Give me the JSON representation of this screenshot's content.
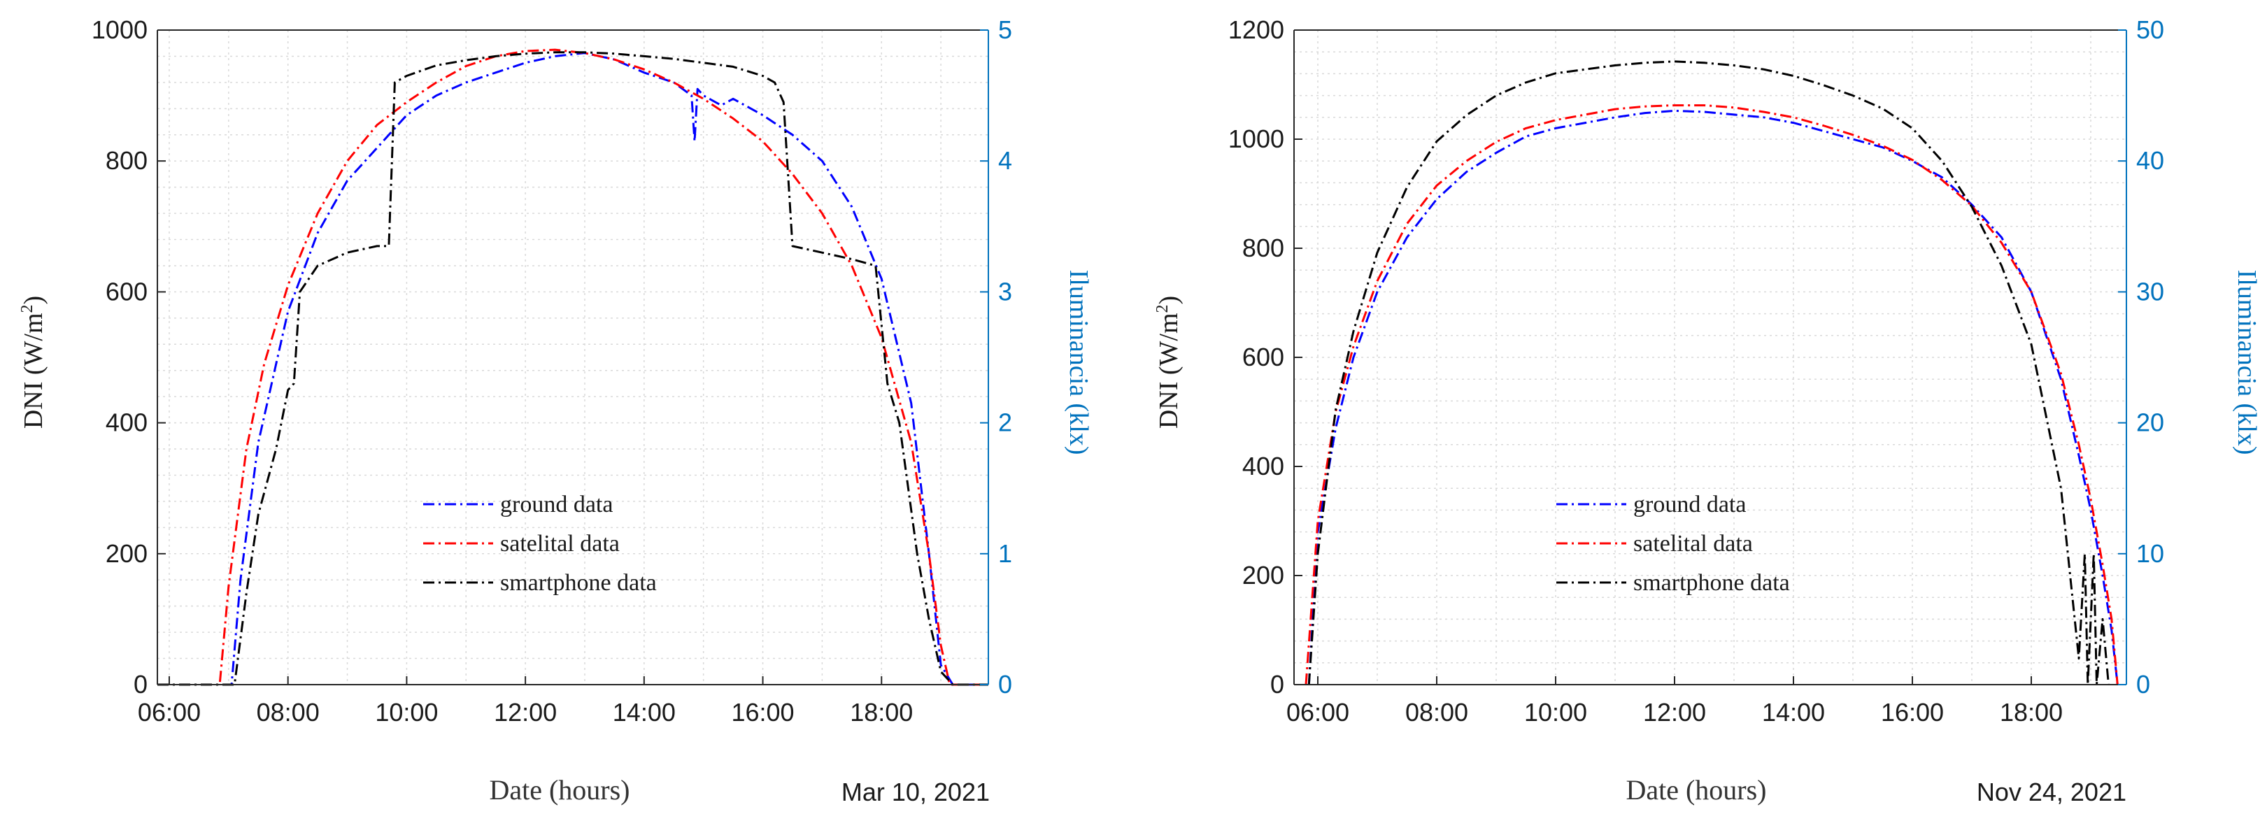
{
  "colors": {
    "ground": "#0000ff",
    "satelital": "#ff0000",
    "smartphone": "#000000",
    "right_axis": "#0072bd"
  },
  "chart_data": [
    {
      "type": "line",
      "xlabel": "Date (hours)",
      "date_label": "Mar 10, 2021",
      "ylabel": "DNI (W/m²)",
      "ylabel_right": "Iluminancia (klx)",
      "x_ticks": [
        "06:00",
        "08:00",
        "10:00",
        "12:00",
        "14:00",
        "16:00",
        "18:00"
      ],
      "xlim": [
        5.8,
        19.8
      ],
      "ylim": [
        0,
        1000
      ],
      "y_ticks": [
        "0",
        "200",
        "400",
        "600",
        "800",
        "1000"
      ],
      "ylim_right": [
        0,
        5
      ],
      "y_ticks_right": [
        "0",
        "1",
        "2",
        "3",
        "4",
        "5"
      ],
      "legend": [
        "ground data",
        "satelital data",
        "smartphone data"
      ],
      "series": [
        {
          "name": "ground data",
          "axis": "left",
          "x": [
            5.8,
            7.05,
            7.2,
            7.5,
            8.0,
            8.5,
            9.0,
            9.5,
            10.0,
            10.5,
            11.0,
            11.5,
            12.0,
            12.5,
            13.0,
            13.5,
            14.0,
            14.5,
            14.8,
            14.85,
            14.9,
            15.0,
            15.3,
            15.5,
            16.0,
            16.5,
            17.0,
            17.5,
            18.0,
            18.5,
            18.8,
            19.0,
            19.2,
            19.8
          ],
          "y": [
            0,
            0,
            160,
            370,
            570,
            690,
            770,
            820,
            870,
            900,
            920,
            935,
            950,
            960,
            965,
            955,
            935,
            920,
            900,
            830,
            910,
            900,
            885,
            895,
            870,
            840,
            800,
            730,
            620,
            430,
            200,
            30,
            0,
            0
          ]
        },
        {
          "name": "satelital data",
          "axis": "left",
          "x": [
            5.8,
            6.85,
            7.0,
            7.3,
            7.6,
            8.0,
            8.5,
            9.0,
            9.5,
            10.0,
            10.5,
            11.0,
            11.5,
            12.0,
            12.5,
            13.0,
            13.5,
            14.0,
            14.5,
            15.0,
            15.5,
            16.0,
            16.5,
            17.0,
            17.5,
            18.0,
            18.5,
            18.8,
            19.0,
            19.15,
            19.8
          ],
          "y": [
            0,
            0,
            150,
            360,
            490,
            610,
            720,
            800,
            855,
            890,
            920,
            945,
            960,
            968,
            970,
            965,
            955,
            940,
            920,
            895,
            865,
            830,
            780,
            720,
            640,
            530,
            370,
            200,
            60,
            0,
            0
          ]
        },
        {
          "name": "smartphone data",
          "axis": "right",
          "x": [
            5.8,
            7.1,
            7.3,
            7.5,
            7.8,
            8.0,
            8.1,
            8.2,
            8.5,
            9.0,
            9.5,
            9.7,
            9.8,
            10.0,
            10.5,
            11.0,
            11.5,
            12.0,
            12.5,
            13.0,
            13.5,
            14.0,
            14.5,
            15.0,
            15.5,
            16.0,
            16.2,
            16.35,
            16.5,
            17.0,
            17.5,
            17.9,
            18.1,
            18.3,
            18.6,
            18.8,
            19.0,
            19.2,
            19.8
          ],
          "y": [
            0,
            0,
            0.7,
            1.3,
            1.8,
            2.25,
            2.3,
            3.0,
            3.2,
            3.3,
            3.35,
            3.35,
            4.6,
            4.65,
            4.73,
            4.77,
            4.8,
            4.82,
            4.83,
            4.83,
            4.82,
            4.8,
            4.78,
            4.75,
            4.72,
            4.65,
            4.6,
            4.45,
            3.35,
            3.3,
            3.25,
            3.2,
            2.3,
            2.0,
            1.0,
            0.5,
            0.1,
            0,
            0
          ]
        }
      ]
    },
    {
      "type": "line",
      "xlabel": "Date (hours)",
      "date_label": "Nov 24, 2021",
      "ylabel": "DNI (W/m²)",
      "ylabel_right": "Iluminancia (klx)",
      "x_ticks": [
        "06:00",
        "08:00",
        "10:00",
        "12:00",
        "14:00",
        "16:00",
        "18:00"
      ],
      "xlim": [
        5.6,
        19.6
      ],
      "ylim": [
        0,
        1200
      ],
      "y_ticks": [
        "0",
        "200",
        "400",
        "600",
        "800",
        "1000",
        "1200"
      ],
      "ylim_right": [
        0,
        50
      ],
      "y_ticks_right": [
        "0",
        "10",
        "20",
        "30",
        "40",
        "50"
      ],
      "legend": [
        "ground data",
        "satelital data",
        "smartphone data"
      ],
      "series": [
        {
          "name": "ground data",
          "axis": "left",
          "x": [
            5.85,
            6.0,
            6.3,
            6.6,
            7.0,
            7.5,
            8.0,
            8.5,
            9.0,
            9.5,
            10.0,
            10.5,
            11.0,
            11.5,
            12.0,
            12.5,
            13.0,
            13.5,
            14.0,
            14.5,
            15.0,
            15.5,
            16.0,
            16.5,
            17.0,
            17.5,
            18.0,
            18.5,
            18.8,
            19.0,
            19.2,
            19.35,
            19.45
          ],
          "y": [
            0,
            280,
            470,
            600,
            720,
            820,
            890,
            940,
            975,
            1005,
            1020,
            1030,
            1040,
            1048,
            1052,
            1050,
            1045,
            1040,
            1030,
            1015,
            1000,
            985,
            960,
            930,
            880,
            820,
            720,
            560,
            420,
            320,
            200,
            100,
            0
          ]
        },
        {
          "name": "satelital data",
          "axis": "left",
          "x": [
            5.8,
            6.0,
            6.3,
            6.6,
            7.0,
            7.5,
            8.0,
            8.5,
            9.0,
            9.5,
            10.0,
            10.5,
            11.0,
            11.5,
            12.0,
            12.5,
            13.0,
            13.5,
            14.0,
            14.5,
            15.0,
            15.5,
            16.0,
            16.5,
            17.0,
            17.5,
            18.0,
            18.5,
            18.8,
            19.0,
            19.2,
            19.35,
            19.45
          ],
          "y": [
            0,
            300,
            500,
            620,
            740,
            845,
            915,
            960,
            995,
            1020,
            1035,
            1045,
            1055,
            1060,
            1062,
            1062,
            1058,
            1050,
            1040,
            1025,
            1008,
            988,
            962,
            925,
            878,
            810,
            720,
            570,
            440,
            340,
            220,
            120,
            0
          ]
        },
        {
          "name": "smartphone data",
          "axis": "right",
          "x": [
            5.85,
            6.0,
            6.3,
            6.6,
            7.0,
            7.5,
            8.0,
            8.5,
            9.0,
            9.5,
            10.0,
            10.5,
            11.0,
            11.5,
            12.0,
            12.5,
            13.0,
            13.5,
            14.0,
            14.5,
            15.0,
            15.5,
            16.0,
            16.5,
            17.0,
            17.5,
            18.0,
            18.5,
            18.8,
            18.9,
            18.95,
            19.05,
            19.1,
            19.2,
            19.3
          ],
          "y": [
            0,
            10,
            21,
            27,
            33,
            38,
            41.5,
            43.5,
            45,
            46,
            46.7,
            47,
            47.3,
            47.5,
            47.6,
            47.5,
            47.3,
            47,
            46.5,
            45.8,
            45,
            44,
            42.5,
            40,
            36.5,
            32,
            26,
            15,
            2,
            10,
            0,
            10,
            0,
            5,
            0
          ]
        }
      ]
    }
  ]
}
